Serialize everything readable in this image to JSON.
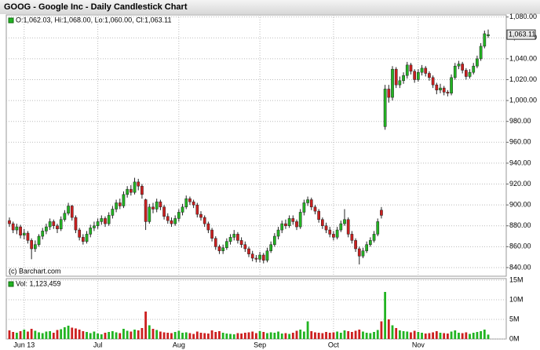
{
  "chart_data": {
    "type": "candlestick",
    "title": "GOOG - Google Inc - Daily Candlestick Chart",
    "legend_text": "O:1,062.03, Hi:1,068.00, Lo:1,060.00, Cl:1,063.11",
    "credit": "(c) Barchart.com",
    "last_label": "1,063.11",
    "up_color": "#22b422",
    "down_color": "#cc1f1f",
    "grid": true,
    "categories": [
      null,
      null,
      null,
      null,
      "Jun 13",
      null,
      null,
      null,
      null,
      null,
      null,
      null,
      null,
      null,
      null,
      null,
      null,
      null,
      null,
      null,
      null,
      null,
      null,
      null,
      "Jul",
      null,
      null,
      null,
      null,
      null,
      null,
      null,
      null,
      null,
      null,
      null,
      null,
      null,
      null,
      null,
      null,
      null,
      null,
      null,
      null,
      null,
      "Aug",
      null,
      null,
      null,
      null,
      null,
      null,
      null,
      null,
      null,
      null,
      null,
      null,
      null,
      null,
      null,
      null,
      null,
      null,
      null,
      null,
      null,
      "Sep",
      null,
      null,
      null,
      null,
      null,
      null,
      null,
      null,
      null,
      null,
      null,
      null,
      null,
      null,
      null,
      null,
      null,
      null,
      null,
      "Oct",
      null,
      null,
      null,
      null,
      null,
      null,
      null,
      null,
      null,
      null,
      null,
      null,
      null,
      null,
      null,
      null,
      null,
      null,
      null,
      null,
      null,
      null,
      "Nov",
      null,
      null,
      null,
      null,
      null,
      null,
      null,
      null,
      null,
      null,
      null,
      null,
      null,
      null,
      null,
      null,
      null,
      null,
      null
    ],
    "open": [
      885,
      882,
      876,
      879,
      871,
      873,
      866,
      858,
      862,
      870,
      875,
      879,
      884,
      880,
      877,
      886,
      892,
      899,
      888,
      876,
      869,
      865,
      872,
      878,
      880,
      884,
      887,
      882,
      890,
      896,
      902,
      899,
      910,
      915,
      912,
      922,
      918,
      905,
      884,
      898,
      896,
      903,
      898,
      889,
      885,
      882,
      887,
      893,
      898,
      906,
      903,
      900,
      891,
      888,
      882,
      876,
      868,
      860,
      856,
      859,
      865,
      869,
      872,
      866,
      862,
      858,
      853,
      849,
      848,
      852,
      847,
      856,
      862,
      870,
      876,
      882,
      880,
      887,
      884,
      879,
      893,
      902,
      905,
      898,
      894,
      886,
      880,
      876,
      872,
      869,
      876,
      882,
      886,
      872,
      866,
      858,
      851,
      856,
      862,
      866,
      872,
      895,
      975,
      1011,
      1003,
      1030,
      1015,
      1019,
      1024,
      1034,
      1028,
      1020,
      1027,
      1031,
      1026,
      1022,
      1015,
      1010,
      1012,
      1008,
      1007,
      1022,
      1033,
      1035,
      1029,
      1023,
      1027,
      1033,
      1040,
      1052,
      1062.03
    ],
    "high": [
      888,
      884,
      882,
      881,
      877,
      875,
      868,
      866,
      872,
      878,
      882,
      887,
      886,
      882,
      889,
      895,
      902,
      900,
      890,
      878,
      872,
      875,
      881,
      884,
      887,
      890,
      889,
      893,
      899,
      905,
      906,
      913,
      918,
      919,
      926,
      925,
      920,
      906,
      901,
      902,
      906,
      905,
      900,
      892,
      888,
      890,
      896,
      901,
      909,
      908,
      905,
      902,
      894,
      890,
      884,
      878,
      870,
      862,
      862,
      868,
      872,
      876,
      874,
      869,
      865,
      860,
      856,
      852,
      855,
      854,
      859,
      865,
      873,
      879,
      885,
      886,
      890,
      890,
      886,
      896,
      905,
      908,
      907,
      900,
      896,
      888,
      883,
      879,
      875,
      879,
      885,
      896,
      888,
      875,
      868,
      860,
      859,
      865,
      869,
      875,
      887,
      898,
      1015,
      1015,
      1033,
      1032,
      1023,
      1027,
      1037,
      1036,
      1030,
      1030,
      1034,
      1033,
      1028,
      1024,
      1017,
      1016,
      1014,
      1010,
      1025,
      1036,
      1038,
      1037,
      1031,
      1030,
      1036,
      1043,
      1055,
      1067,
      1068
    ],
    "low": [
      879,
      873,
      872,
      868,
      867,
      863,
      848,
      855,
      860,
      867,
      872,
      876,
      877,
      873,
      875,
      884,
      890,
      885,
      873,
      866,
      862,
      863,
      869,
      875,
      877,
      881,
      879,
      880,
      887,
      893,
      896,
      897,
      907,
      909,
      910,
      914,
      906,
      876,
      882,
      892,
      893,
      895,
      886,
      882,
      879,
      880,
      884,
      890,
      896,
      900,
      897,
      888,
      885,
      879,
      873,
      865,
      857,
      853,
      853,
      857,
      862,
      866,
      863,
      859,
      855,
      850,
      846,
      845,
      845,
      844,
      845,
      854,
      860,
      867,
      873,
      877,
      878,
      881,
      876,
      877,
      890,
      899,
      895,
      891,
      883,
      877,
      873,
      869,
      866,
      867,
      874,
      880,
      869,
      863,
      855,
      843,
      849,
      854,
      860,
      864,
      870,
      887,
      972,
      998,
      1000,
      1012,
      1012,
      1016,
      1021,
      1025,
      1017,
      1018,
      1024,
      1023,
      1019,
      1012,
      1006,
      1007,
      1005,
      1004,
      1005,
      1020,
      1030,
      1026,
      1020,
      1021,
      1025,
      1031,
      1038,
      1050,
      1060
    ],
    "close": [
      882,
      876,
      879,
      871,
      873,
      866,
      858,
      862,
      870,
      875,
      879,
      884,
      880,
      877,
      886,
      892,
      899,
      888,
      876,
      869,
      865,
      872,
      878,
      880,
      884,
      887,
      882,
      890,
      896,
      902,
      899,
      910,
      915,
      912,
      922,
      918,
      910,
      884,
      898,
      896,
      903,
      898,
      889,
      885,
      882,
      887,
      893,
      898,
      906,
      903,
      900,
      891,
      888,
      882,
      876,
      868,
      860,
      856,
      859,
      865,
      869,
      872,
      866,
      862,
      858,
      853,
      849,
      848,
      852,
      847,
      856,
      862,
      870,
      876,
      882,
      880,
      887,
      884,
      879,
      893,
      902,
      905,
      898,
      894,
      886,
      880,
      876,
      872,
      869,
      876,
      882,
      886,
      872,
      866,
      858,
      851,
      856,
      862,
      866,
      872,
      884,
      890,
      1011,
      1003,
      1030,
      1015,
      1019,
      1024,
      1034,
      1028,
      1020,
      1027,
      1031,
      1026,
      1022,
      1015,
      1010,
      1012,
      1008,
      1007,
      1022,
      1033,
      1035,
      1029,
      1023,
      1027,
      1033,
      1040,
      1052,
      1064,
      1063.11
    ],
    "ylim": [
      831.7,
      1082
    ],
    "yticks": [
      {
        "value": 840,
        "label": "840.00"
      },
      {
        "value": 860,
        "label": "860.00"
      },
      {
        "value": 880,
        "label": "880.00"
      },
      {
        "value": 900,
        "label": "900.00"
      },
      {
        "value": 920,
        "label": "920.00"
      },
      {
        "value": 940,
        "label": "940.00"
      },
      {
        "value": 960,
        "label": "960.00"
      },
      {
        "value": 980,
        "label": "980.00"
      },
      {
        "value": 1000,
        "label": "1,000.00"
      },
      {
        "value": 1020,
        "label": "1,020.00"
      },
      {
        "value": 1040,
        "label": "1,040.00"
      },
      {
        "value": 1060,
        "label": "1,060.00"
      },
      {
        "value": 1080,
        "label": "1,080.00"
      }
    ],
    "volume": {
      "label": "Vol: 1,123,459",
      "values": [
        2.2,
        1.8,
        1.6,
        2.0,
        2.4,
        1.9,
        2.6,
        2.1,
        1.7,
        1.5,
        1.9,
        2.0,
        1.6,
        2.3,
        2.5,
        3.0,
        3.4,
        2.9,
        2.7,
        2.4,
        2.0,
        1.8,
        1.5,
        1.9,
        1.4,
        1.2,
        1.6,
        1.8,
        2.0,
        1.7,
        1.5,
        2.6,
        2.1,
        1.9,
        2.4,
        2.2,
        2.8,
        7.0,
        3.5,
        2.6,
        2.3,
        1.9,
        1.7,
        1.6,
        1.5,
        1.8,
        2.1,
        1.6,
        1.7,
        1.5,
        1.3,
        1.9,
        1.6,
        1.5,
        1.4,
        2.2,
        1.8,
        2.0,
        1.6,
        1.4,
        1.3,
        1.2,
        1.5,
        1.4,
        1.6,
        1.7,
        1.9,
        1.5,
        2.0,
        1.8,
        1.5,
        1.7,
        1.6,
        1.9,
        1.4,
        1.5,
        1.3,
        1.6,
        2.1,
        2.4,
        1.9,
        4.5,
        2.0,
        1.7,
        1.6,
        1.5,
        1.8,
        1.6,
        1.7,
        1.9,
        1.6,
        2.2,
        2.0,
        1.8,
        2.1,
        2.4,
        1.9,
        1.6,
        1.5,
        1.8,
        2.3,
        4.5,
        12.0,
        5.0,
        3.5,
        2.8,
        2.2,
        2.0,
        1.9,
        1.7,
        2.1,
        1.8,
        1.6,
        1.4,
        1.5,
        1.7,
        2.0,
        1.6,
        1.5,
        1.4,
        1.9,
        2.2,
        1.6,
        1.5,
        1.7,
        1.3,
        1.6,
        1.8,
        2.0,
        2.4,
        1.123459
      ],
      "ylim": [
        0,
        15
      ],
      "yticks": [
        {
          "value": 0,
          "label": "0M"
        },
        {
          "value": 5,
          "label": "5M"
        },
        {
          "value": 10,
          "label": "10M"
        },
        {
          "value": 15,
          "label": "15M"
        }
      ]
    }
  }
}
